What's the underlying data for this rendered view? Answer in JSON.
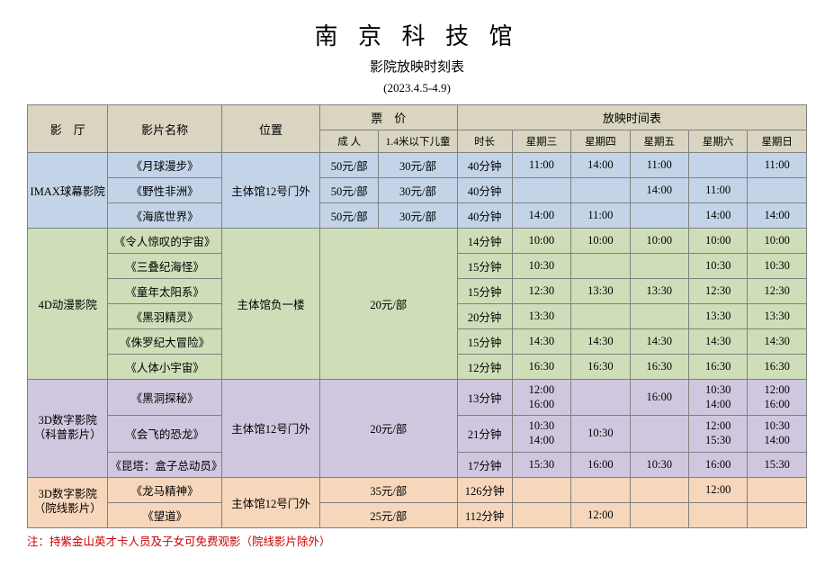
{
  "title": "南 京 科 技 馆",
  "subtitle": "影院放映时刻表",
  "date_range": "(2023.4.5-4.9)",
  "headers": {
    "hall": "影　厅",
    "film": "影片名称",
    "location": "位置",
    "price": "票　价",
    "schedule": "放映时间表",
    "adult": "成 人",
    "child": "1.4米以下儿童",
    "duration": "时长",
    "days": [
      "星期三",
      "星期四",
      "星期五",
      "星期六",
      "星期日"
    ]
  },
  "sections": [
    {
      "class": "sec-blue",
      "hall": "IMAX球幕影院",
      "location": "主体馆12号门外",
      "price_adult_each": "50元/部",
      "price_child_each": "30元/部",
      "price_merged": false,
      "rows": [
        {
          "film": "《月球漫步》",
          "dur": "40分钟",
          "d": [
            "11:00",
            "14:00",
            "11:00",
            "",
            "11:00"
          ]
        },
        {
          "film": "《野性非洲》",
          "dur": "40分钟",
          "d": [
            "",
            "",
            "14:00",
            "11:00",
            ""
          ]
        },
        {
          "film": "《海底世界》",
          "dur": "40分钟",
          "d": [
            "14:00",
            "11:00",
            "",
            "14:00",
            "14:00"
          ]
        }
      ]
    },
    {
      "class": "sec-green",
      "hall": "4D动漫影院",
      "location": "主体馆负一楼",
      "price_merged": true,
      "price_label": "20元/部",
      "rows": [
        {
          "film": "《令人惊叹的宇宙》",
          "dur": "14分钟",
          "d": [
            "10:00",
            "10:00",
            "10:00",
            "10:00",
            "10:00"
          ]
        },
        {
          "film": "《三叠纪海怪》",
          "dur": "15分钟",
          "d": [
            "10:30",
            "",
            "",
            "10:30",
            "10:30"
          ]
        },
        {
          "film": "《童年太阳系》",
          "dur": "15分钟",
          "d": [
            "12:30",
            "13:30",
            "13:30",
            "12:30",
            "12:30"
          ]
        },
        {
          "film": "《黑羽精灵》",
          "dur": "20分钟",
          "d": [
            "13:30",
            "",
            "",
            "13:30",
            "13:30"
          ]
        },
        {
          "film": "《侏罗纪大冒险》",
          "dur": "15分钟",
          "d": [
            "14:30",
            "14:30",
            "14:30",
            "14:30",
            "14:30"
          ]
        },
        {
          "film": "《人体小宇宙》",
          "dur": "12分钟",
          "d": [
            "16:30",
            "16:30",
            "16:30",
            "16:30",
            "16:30"
          ]
        }
      ]
    },
    {
      "class": "sec-purple",
      "hall": "3D数字影院\n（科普影片）",
      "location": "主体馆12号门外",
      "price_merged": true,
      "price_label": "20元/部",
      "rows": [
        {
          "film": "《黑洞探秘》",
          "dur": "13分钟",
          "d": [
            "12:00\n16:00",
            "",
            "16:00",
            "10:30\n14:00",
            "12:00\n16:00"
          ]
        },
        {
          "film": "《会飞的恐龙》",
          "dur": "21分钟",
          "d": [
            "10:30\n14:00",
            "10:30",
            "",
            "12:00\n15:30",
            "10:30\n14:00"
          ]
        },
        {
          "film": "《昆塔：盒子总动员》",
          "dur": "17分钟",
          "d": [
            "15:30",
            "16:00",
            "10:30",
            "16:00",
            "15:30"
          ]
        }
      ]
    },
    {
      "class": "sec-orange",
      "hall": "3D数字影院\n（院线影片）",
      "location": "主体馆12号门外",
      "price_merged": "per_row",
      "rows": [
        {
          "film": "《龙马精神》",
          "price": "35元/部",
          "dur": "126分钟",
          "d": [
            "",
            "",
            "",
            "12:00",
            ""
          ]
        },
        {
          "film": "《望道》",
          "price": "25元/部",
          "dur": "112分钟",
          "d": [
            "",
            "12:00",
            "",
            "",
            ""
          ]
        }
      ]
    }
  ],
  "note": "注：持紫金山英才卡人员及子女可免费观影（院线影片除外）",
  "colors": {
    "header_bg": "#d9d5c0",
    "blue": "#c4d4e8",
    "green": "#cedeb8",
    "purple": "#cfc7df",
    "orange": "#f6d7bb",
    "border": "#808080",
    "note": "#cc0000"
  }
}
